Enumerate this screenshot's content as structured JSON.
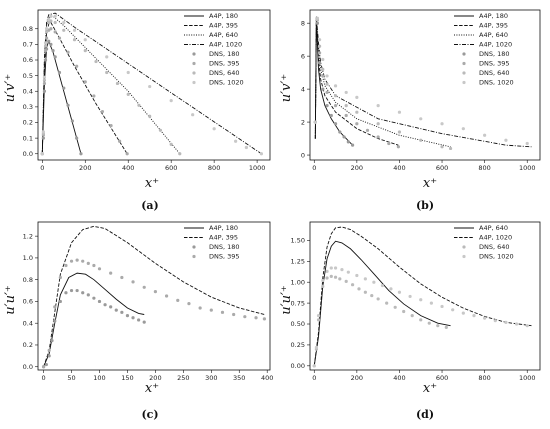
{
  "panels": [
    {
      "label": "(a)",
      "xlabel": "x⁺",
      "ylabel": "u′v′⁺",
      "xlim": [
        -20,
        1060
      ],
      "ylim": [
        -0.04,
        0.92
      ],
      "xticks": [
        0,
        200,
        400,
        600,
        800,
        1000
      ],
      "yticks": [
        0.0,
        0.1,
        0.2,
        0.3,
        0.4,
        0.5,
        0.6,
        0.7,
        0.8
      ],
      "ytick_labels": [
        "0.0",
        "0.1",
        "0.2",
        "0.3",
        "0.4",
        "0.5",
        "0.6",
        "0.7",
        "0.8"
      ],
      "legend_position": "top-right",
      "model_series": [
        {
          "name": "A4P, 180",
          "style": "solid",
          "x": [
            0,
            10,
            20,
            30,
            50,
            80,
            120,
            180
          ],
          "y": [
            0.0,
            0.45,
            0.68,
            0.72,
            0.65,
            0.5,
            0.3,
            0.0
          ]
        },
        {
          "name": "A4P, 395",
          "style": "dashed",
          "x": [
            0,
            10,
            20,
            30,
            40,
            80,
            150,
            250,
            395
          ],
          "y": [
            0.0,
            0.55,
            0.77,
            0.83,
            0.84,
            0.74,
            0.56,
            0.32,
            0.0
          ]
        },
        {
          "name": "A4P, 640",
          "style": "dotted",
          "x": [
            0,
            10,
            20,
            30,
            50,
            100,
            200,
            400,
            640
          ],
          "y": [
            0.0,
            0.6,
            0.82,
            0.87,
            0.88,
            0.82,
            0.68,
            0.4,
            0.0
          ]
        },
        {
          "name": "A4P, 1020",
          "style": "dashdot",
          "x": [
            0,
            10,
            20,
            30,
            60,
            150,
            300,
            600,
            1020
          ],
          "y": [
            0.0,
            0.62,
            0.84,
            0.89,
            0.9,
            0.81,
            0.67,
            0.39,
            0.0
          ]
        }
      ],
      "dns_series": [
        {
          "name": "DNS, 180",
          "shade": 1,
          "x": [
            0,
            5,
            10,
            15,
            20,
            30,
            40,
            50,
            60,
            80,
            100,
            120,
            140,
            160,
            180
          ],
          "y": [
            0.0,
            0.1,
            0.4,
            0.6,
            0.67,
            0.72,
            0.7,
            0.66,
            0.62,
            0.52,
            0.42,
            0.31,
            0.21,
            0.1,
            0.0
          ]
        },
        {
          "name": "DNS, 395",
          "shade": 2,
          "x": [
            0,
            5,
            10,
            15,
            20,
            30,
            40,
            60,
            80,
            120,
            160,
            200,
            240,
            280,
            320,
            360,
            395
          ],
          "y": [
            0.0,
            0.12,
            0.45,
            0.66,
            0.74,
            0.79,
            0.8,
            0.78,
            0.74,
            0.65,
            0.56,
            0.46,
            0.37,
            0.27,
            0.18,
            0.08,
            0.0
          ]
        },
        {
          "name": "DNS, 640",
          "shade": 3,
          "x": [
            0,
            5,
            10,
            15,
            20,
            30,
            40,
            60,
            100,
            150,
            200,
            250,
            300,
            350,
            400,
            450,
            500,
            550,
            600,
            640
          ],
          "y": [
            0.0,
            0.13,
            0.47,
            0.69,
            0.78,
            0.84,
            0.85,
            0.84,
            0.79,
            0.73,
            0.66,
            0.59,
            0.52,
            0.45,
            0.38,
            0.31,
            0.24,
            0.15,
            0.06,
            0.0
          ]
        },
        {
          "name": "DNS, 1020",
          "shade": 4,
          "x": [
            0,
            5,
            10,
            15,
            20,
            30,
            40,
            60,
            100,
            150,
            200,
            300,
            400,
            500,
            600,
            700,
            800,
            900,
            950,
            1020
          ],
          "y": [
            0.0,
            0.14,
            0.49,
            0.71,
            0.8,
            0.86,
            0.88,
            0.88,
            0.84,
            0.79,
            0.73,
            0.62,
            0.52,
            0.43,
            0.34,
            0.25,
            0.16,
            0.08,
            0.04,
            0.0
          ]
        }
      ]
    },
    {
      "label": "(b)",
      "xlabel": "x⁺",
      "ylabel": "u′v′⁺",
      "xlim": [
        -20,
        1060
      ],
      "ylim": [
        -0.3,
        8.8
      ],
      "xticks": [
        0,
        200,
        400,
        600,
        800,
        1000
      ],
      "yticks": [
        0,
        2,
        4,
        6,
        8
      ],
      "ytick_labels": [
        "0",
        "2",
        "4",
        "6",
        "8"
      ],
      "legend_position": "top-right",
      "model_series": [
        {
          "name": "A4P, 180",
          "style": "solid",
          "x": [
            5,
            10,
            15,
            20,
            30,
            50,
            80,
            120,
            150,
            180
          ],
          "y": [
            1.0,
            8.4,
            6.6,
            5.2,
            4.0,
            3.0,
            2.2,
            1.4,
            1.0,
            0.6
          ]
        },
        {
          "name": "A4P, 395",
          "style": "dashed",
          "x": [
            5,
            10,
            15,
            20,
            30,
            50,
            100,
            200,
            300,
            395
          ],
          "y": [
            1.0,
            8.4,
            7.0,
            5.8,
            4.6,
            3.6,
            2.6,
            1.6,
            1.0,
            0.6
          ]
        },
        {
          "name": "A4P, 640",
          "style": "dotted",
          "x": [
            5,
            10,
            15,
            20,
            30,
            50,
            100,
            200,
            400,
            640
          ],
          "y": [
            1.0,
            8.4,
            7.4,
            6.4,
            5.2,
            4.2,
            3.2,
            2.2,
            1.2,
            0.5
          ]
        },
        {
          "name": "A4P, 1020",
          "style": "dashdot",
          "x": [
            5,
            10,
            15,
            20,
            30,
            50,
            100,
            300,
            600,
            900,
            1020
          ],
          "y": [
            1.0,
            8.3,
            7.6,
            6.8,
            5.6,
            4.6,
            3.6,
            2.2,
            1.3,
            0.6,
            0.5
          ]
        }
      ],
      "dns_series": [
        {
          "name": "DNS, 180",
          "shade": 1,
          "x": [
            5,
            15,
            25,
            40,
            60,
            80,
            100,
            120,
            140,
            160,
            180
          ],
          "y": [
            2.0,
            8.0,
            5.6,
            4.0,
            3.0,
            2.4,
            1.9,
            1.4,
            1.1,
            0.8,
            0.6
          ]
        },
        {
          "name": "DNS, 395",
          "shade": 2,
          "x": [
            5,
            15,
            25,
            40,
            60,
            100,
            150,
            200,
            250,
            300,
            350,
            395
          ],
          "y": [
            2.0,
            8.2,
            6.2,
            4.8,
            3.8,
            3.0,
            2.4,
            1.9,
            1.5,
            1.1,
            0.7,
            0.5
          ]
        },
        {
          "name": "DNS, 640",
          "shade": 3,
          "x": [
            5,
            15,
            25,
            40,
            60,
            100,
            150,
            200,
            300,
            400,
            500,
            600,
            640
          ],
          "y": [
            2.0,
            8.2,
            6.6,
            5.2,
            4.3,
            3.6,
            3.0,
            2.6,
            1.9,
            1.4,
            0.9,
            0.5,
            0.4
          ]
        },
        {
          "name": "DNS, 1020",
          "shade": 4,
          "x": [
            5,
            15,
            25,
            40,
            60,
            100,
            150,
            200,
            300,
            400,
            500,
            600,
            700,
            800,
            900,
            1000
          ],
          "y": [
            2.0,
            8.3,
            7.0,
            5.8,
            4.8,
            4.2,
            3.8,
            3.5,
            3.0,
            2.6,
            2.2,
            1.9,
            1.6,
            1.2,
            0.9,
            0.7
          ]
        }
      ]
    },
    {
      "label": "(c)",
      "xlabel": "x⁺",
      "ylabel": "u′u′⁺",
      "xlim": [
        -10,
        405
      ],
      "ylim": [
        -0.03,
        1.33
      ],
      "xticks": [
        0,
        50,
        100,
        150,
        200,
        250,
        300,
        350,
        400
      ],
      "yticks": [
        0.0,
        0.2,
        0.4,
        0.6,
        0.8,
        1.0,
        1.2
      ],
      "ytick_labels": [
        "0.0",
        "0.2",
        "0.4",
        "0.6",
        "0.8",
        "1.0",
        "1.2"
      ],
      "legend_position": "top-right",
      "model_series": [
        {
          "name": "A4P, 180",
          "style": "solid",
          "x": [
            0,
            10,
            20,
            30,
            45,
            60,
            75,
            90,
            110,
            130,
            150,
            170,
            180
          ],
          "y": [
            0.0,
            0.12,
            0.4,
            0.66,
            0.82,
            0.86,
            0.85,
            0.8,
            0.71,
            0.62,
            0.54,
            0.49,
            0.48
          ]
        },
        {
          "name": "A4P, 395",
          "style": "dashed",
          "x": [
            0,
            10,
            20,
            30,
            50,
            70,
            90,
            110,
            150,
            200,
            250,
            300,
            350,
            395
          ],
          "y": [
            0.0,
            0.15,
            0.5,
            0.85,
            1.14,
            1.26,
            1.29,
            1.27,
            1.14,
            0.95,
            0.78,
            0.64,
            0.54,
            0.48
          ]
        }
      ],
      "dns_series": [
        {
          "name": "DNS, 180",
          "shade": 1,
          "x": [
            0,
            5,
            10,
            15,
            20,
            30,
            40,
            50,
            60,
            70,
            80,
            90,
            100,
            110,
            120,
            130,
            140,
            150,
            160,
            170,
            180
          ],
          "y": [
            0.0,
            0.02,
            0.1,
            0.24,
            0.42,
            0.6,
            0.68,
            0.7,
            0.7,
            0.68,
            0.66,
            0.63,
            0.6,
            0.57,
            0.55,
            0.52,
            0.5,
            0.47,
            0.45,
            0.43,
            0.41
          ]
        },
        {
          "name": "DNS, 395",
          "shade": 2,
          "x": [
            0,
            10,
            20,
            30,
            40,
            50,
            60,
            70,
            80,
            90,
            100,
            120,
            140,
            160,
            180,
            200,
            220,
            240,
            260,
            280,
            300,
            320,
            340,
            360,
            380,
            395
          ],
          "y": [
            0.0,
            0.15,
            0.55,
            0.82,
            0.93,
            0.97,
            0.98,
            0.97,
            0.95,
            0.93,
            0.9,
            0.86,
            0.82,
            0.78,
            0.73,
            0.69,
            0.65,
            0.61,
            0.58,
            0.54,
            0.52,
            0.5,
            0.48,
            0.46,
            0.45,
            0.44
          ]
        }
      ]
    },
    {
      "label": "(d)",
      "xlabel": "x⁺",
      "ylabel": "u′u′⁺",
      "xlim": [
        -20,
        1060
      ],
      "ylim": [
        -0.05,
        1.72
      ],
      "xticks": [
        0,
        200,
        400,
        600,
        800,
        1000
      ],
      "yticks": [
        0.0,
        0.25,
        0.5,
        0.75,
        1.0,
        1.25,
        1.5
      ],
      "ytick_labels": [
        "0.00",
        "0.25",
        "0.50",
        "0.75",
        "1.00",
        "1.25",
        "1.50"
      ],
      "legend_position": "top-right",
      "model_series": [
        {
          "name": "A4P, 640",
          "style": "solid",
          "x": [
            0,
            20,
            40,
            60,
            80,
            100,
            130,
            170,
            220,
            280,
            350,
            420,
            500,
            580,
            640
          ],
          "y": [
            0.0,
            0.35,
            0.95,
            1.28,
            1.43,
            1.49,
            1.47,
            1.4,
            1.27,
            1.1,
            0.9,
            0.74,
            0.6,
            0.51,
            0.48
          ]
        },
        {
          "name": "A4P, 1020",
          "style": "dashed",
          "x": [
            0,
            20,
            40,
            60,
            80,
            100,
            130,
            170,
            220,
            300,
            400,
            500,
            600,
            700,
            800,
            900,
            1020
          ],
          "y": [
            0.0,
            0.4,
            1.05,
            1.42,
            1.58,
            1.65,
            1.66,
            1.63,
            1.55,
            1.4,
            1.18,
            0.98,
            0.82,
            0.69,
            0.59,
            0.52,
            0.48
          ]
        }
      ],
      "dns_series": [
        {
          "name": "DNS, 640",
          "shade": 3,
          "x": [
            0,
            10,
            20,
            40,
            60,
            80,
            100,
            120,
            150,
            180,
            210,
            240,
            270,
            300,
            340,
            380,
            420,
            460,
            500,
            540,
            580,
            620
          ],
          "y": [
            0.0,
            0.2,
            0.55,
            0.95,
            1.05,
            1.07,
            1.06,
            1.04,
            1.01,
            0.97,
            0.92,
            0.88,
            0.84,
            0.8,
            0.75,
            0.7,
            0.65,
            0.6,
            0.55,
            0.51,
            0.48,
            0.46
          ]
        },
        {
          "name": "DNS, 1020",
          "shade": 4,
          "x": [
            0,
            10,
            20,
            40,
            60,
            80,
            100,
            130,
            160,
            200,
            240,
            280,
            320,
            360,
            400,
            450,
            500,
            550,
            600,
            650,
            700,
            750,
            800,
            850,
            900,
            950,
            1000
          ],
          "y": [
            0.0,
            0.22,
            0.6,
            1.02,
            1.13,
            1.17,
            1.17,
            1.15,
            1.12,
            1.08,
            1.04,
            1.0,
            0.96,
            0.92,
            0.88,
            0.83,
            0.79,
            0.75,
            0.71,
            0.67,
            0.63,
            0.6,
            0.57,
            0.54,
            0.52,
            0.5,
            0.48
          ]
        }
      ]
    }
  ],
  "colors": {
    "ink": "#111111",
    "dns_shades": [
      "#9a9a9a",
      "#aaaaaa",
      "#bababa",
      "#c8c8c8"
    ]
  }
}
